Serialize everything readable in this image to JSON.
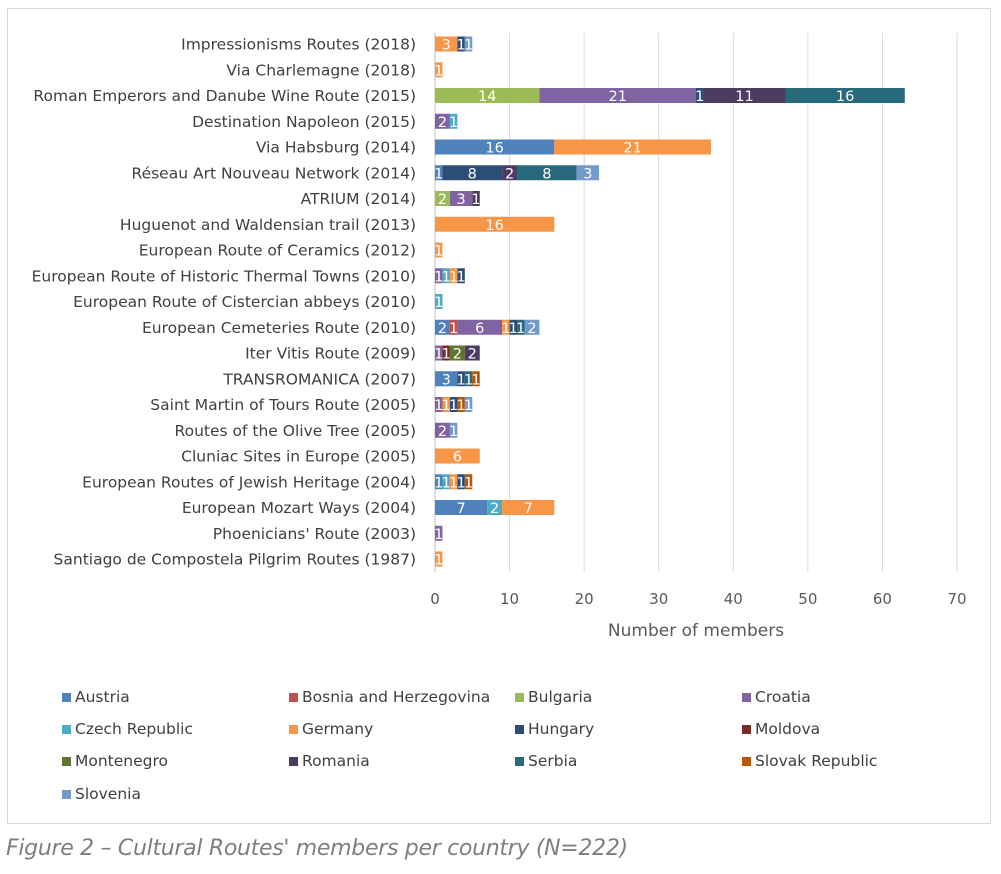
{
  "caption": "Figure 2 – Cultural Routes' members per country (N=222)",
  "chart_data": {
    "type": "bar",
    "orientation": "horizontal",
    "stacked": true,
    "title": "",
    "xlabel": "Number of members",
    "ylabel": "",
    "xlim": [
      0,
      70
    ],
    "xticks": [
      0,
      10,
      20,
      30,
      40,
      50,
      60,
      70
    ],
    "grid": true,
    "legend_position": "bottom",
    "categories": [
      "Impressionisms Routes (2018)",
      "Via Charlemagne (2018)",
      "Roman Emperors and Danube Wine Route (2015)",
      "Destination Napoleon (2015)",
      "Via Habsburg (2014)",
      "Réseau Art Nouveau Network (2014)",
      "ATRIUM (2014)",
      "Huguenot and Waldensian trail (2013)",
      "European Route of Ceramics (2012)",
      "European Route of Historic Thermal Towns (2010)",
      "European Route of Cistercian abbeys (2010)",
      "European Cemeteries Route (2010)",
      "Iter Vitis Route (2009)",
      "TRANSROMANICA (2007)",
      "Saint Martin of Tours Route (2005)",
      "Routes of the Olive Tree (2005)",
      "Cluniac Sites in Europe (2005)",
      "European Routes of Jewish Heritage (2004)",
      "European Mozart Ways (2004)",
      "Phoenicians' Route (2003)",
      "Santiago de Compostela Pilgrim Routes (1987)"
    ],
    "series": [
      {
        "name": "Austria",
        "color": "#4f81bd",
        "values": [
          0,
          0,
          0,
          0,
          16,
          1,
          0,
          0,
          0,
          0,
          0,
          2,
          0,
          3,
          0,
          0,
          0,
          1,
          7,
          0,
          0
        ]
      },
      {
        "name": "Bosnia and Herzegovina",
        "color": "#c0504d",
        "values": [
          0,
          0,
          0,
          0,
          0,
          0,
          0,
          0,
          0,
          0,
          0,
          1,
          0,
          0,
          0,
          0,
          0,
          0,
          0,
          0,
          0
        ]
      },
      {
        "name": "Bulgaria",
        "color": "#9bbb59",
        "values": [
          0,
          0,
          14,
          0,
          0,
          0,
          2,
          0,
          0,
          0,
          0,
          0,
          0,
          0,
          0,
          0,
          0,
          0,
          0,
          0,
          0
        ]
      },
      {
        "name": "Croatia",
        "color": "#8064a2",
        "values": [
          0,
          0,
          21,
          2,
          0,
          0,
          3,
          0,
          0,
          1,
          0,
          6,
          1,
          0,
          1,
          2,
          0,
          0,
          0,
          1,
          0
        ]
      },
      {
        "name": "Czech Republic",
        "color": "#4bacc6",
        "values": [
          0,
          0,
          0,
          1,
          0,
          0,
          0,
          0,
          0,
          1,
          1,
          0,
          0,
          0,
          0,
          0,
          0,
          1,
          2,
          0,
          0
        ]
      },
      {
        "name": "Germany",
        "color": "#f79646",
        "values": [
          3,
          1,
          0,
          0,
          21,
          0,
          0,
          16,
          1,
          1,
          0,
          1,
          0,
          0,
          1,
          0,
          6,
          1,
          7,
          0,
          1
        ]
      },
      {
        "name": "Hungary",
        "color": "#2c4d75",
        "values": [
          1,
          0,
          1,
          0,
          0,
          8,
          0,
          0,
          0,
          1,
          0,
          1,
          0,
          1,
          1,
          0,
          0,
          1,
          0,
          0,
          0
        ]
      },
      {
        "name": "Moldova",
        "color": "#772c2a",
        "values": [
          0,
          0,
          0,
          0,
          0,
          0,
          0,
          0,
          0,
          0,
          0,
          0,
          1,
          0,
          0,
          0,
          0,
          0,
          0,
          0,
          0
        ]
      },
      {
        "name": "Montenegro",
        "color": "#5f7530",
        "values": [
          0,
          0,
          0,
          0,
          0,
          0,
          0,
          0,
          0,
          0,
          0,
          0,
          2,
          0,
          0,
          0,
          0,
          0,
          0,
          0,
          0
        ]
      },
      {
        "name": "Romania",
        "color": "#4d3b62",
        "values": [
          0,
          0,
          11,
          0,
          0,
          2,
          1,
          0,
          0,
          0,
          0,
          0,
          2,
          0,
          0,
          0,
          0,
          0,
          0,
          0,
          0
        ]
      },
      {
        "name": "Serbia",
        "color": "#276a7c",
        "values": [
          0,
          0,
          16,
          0,
          0,
          8,
          0,
          0,
          0,
          0,
          0,
          1,
          0,
          1,
          0,
          0,
          0,
          0,
          0,
          0,
          0
        ]
      },
      {
        "name": "Slovak Republic",
        "color": "#b65708",
        "values": [
          0,
          0,
          0,
          0,
          0,
          0,
          0,
          0,
          0,
          0,
          0,
          0,
          0,
          1,
          1,
          0,
          0,
          1,
          0,
          0,
          0
        ]
      },
      {
        "name": "Slovenia",
        "color": "#729aca",
        "values": [
          1,
          0,
          0,
          0,
          0,
          3,
          0,
          0,
          0,
          0,
          0,
          2,
          0,
          0,
          1,
          1,
          0,
          0,
          0,
          0,
          0
        ]
      }
    ]
  }
}
